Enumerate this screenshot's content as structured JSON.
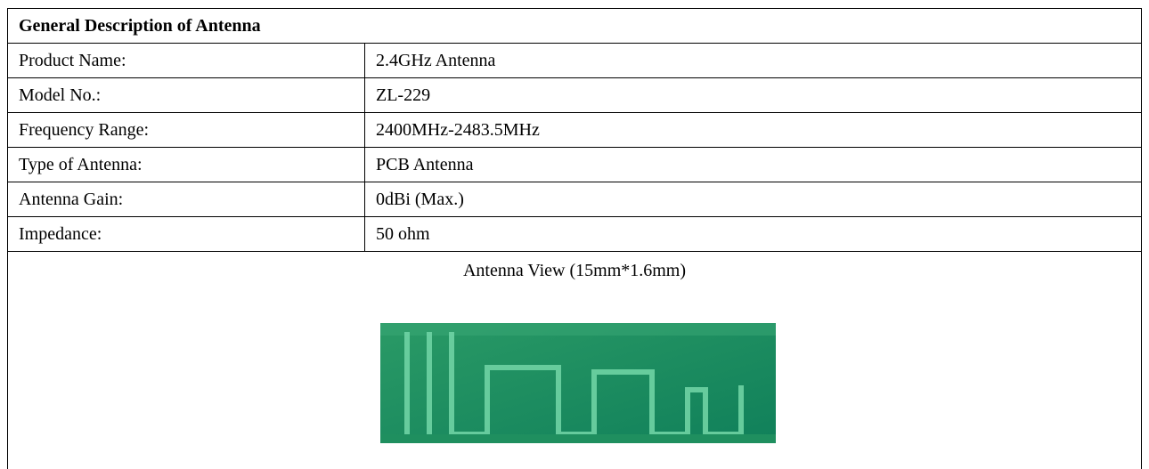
{
  "header": {
    "title": "General Description of Antenna"
  },
  "table": {
    "rows": [
      [
        "Product Name:",
        "2.4GHz Antenna"
      ],
      [
        "Model No.:",
        "ZL-229"
      ],
      [
        "Frequency Range:",
        "2400MHz-2483.5MHz"
      ],
      [
        "Type of Antenna:",
        "PCB Antenna"
      ],
      [
        "Antenna Gain:",
        "0dBi (Max.)"
      ],
      [
        "Impedance:",
        "50 ohm"
      ]
    ]
  },
  "view": {
    "caption": "Antenna View (15mm*1.6mm)"
  }
}
